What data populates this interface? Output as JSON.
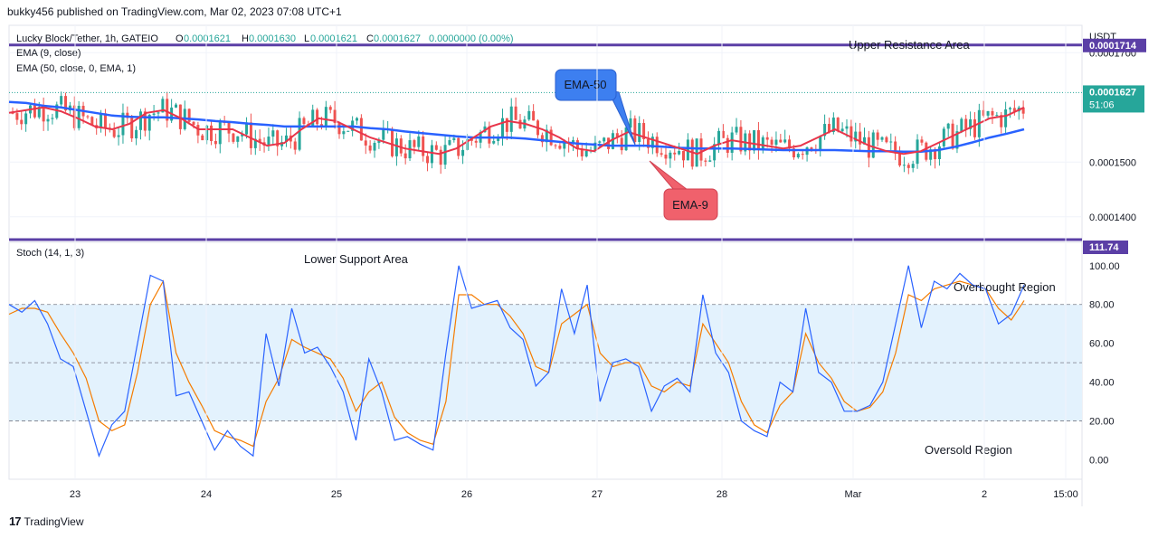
{
  "publisher_line": "bukky456 published on TradingView.com, Mar 02, 2023 07:08 UTC+1",
  "footer": {
    "logo_glyph": "17",
    "brand": "TradingView"
  },
  "price_pane": {
    "symbol_line": "Lucky Block/Tether, 1h, GATEIO",
    "ohlc": {
      "o_label": "O",
      "o": "0.0001621",
      "h_label": "H",
      "h": "0.0001630",
      "l_label": "L",
      "l": "0.0001621",
      "c_label": "C",
      "c": "0.0001627",
      "change": "0.0000000 (0.00%)"
    },
    "ema9_legend": "EMA (9, close)",
    "ema50_legend": "EMA (50, close, 0, EMA, 1)",
    "currency": "USDT",
    "resistance_label": "0.0001714",
    "last_price_label": "0.0001627",
    "countdown": "51:06",
    "ticks": [
      "0.0001700",
      "0.0001500",
      "0.0001400"
    ],
    "callouts": {
      "ema50": "EMA-50",
      "ema9": "EMA-9",
      "upper_resistance": "Upper Resistance Area"
    }
  },
  "stoch_pane": {
    "legend": "Stoch (14, 1, 3)",
    "level_label": "111.74",
    "ticks": [
      "100.00",
      "80.00",
      "60.00",
      "40.00",
      "20.00",
      "0.00"
    ],
    "callouts": {
      "lower_support": "Lower Support Area",
      "overbought": "Overbought Region",
      "oversold": "Oversold Region"
    }
  },
  "x_axis": {
    "labels": [
      "23",
      "24",
      "25",
      "26",
      "27",
      "28",
      "Mar",
      "2",
      "15:00"
    ]
  },
  "colors": {
    "up": "#26a69a",
    "down": "#ef5350",
    "ema9": "#e8354a",
    "ema50": "#2962ff",
    "purple": "#5b3fa6",
    "stoch_k": "#2962ff",
    "stoch_d": "#f57c00",
    "band": "#e3f2fd"
  },
  "chart_data": [
    {
      "type": "candlestick",
      "title": "Lucky Block/Tether, 1h, GATEIO",
      "ylabel": "USDT",
      "ylim": [
        0.000136,
        0.000175
      ],
      "x_labels": [
        "23",
        "24",
        "25",
        "26",
        "27",
        "28",
        "Mar",
        "2",
        "15:00"
      ],
      "horizontal_levels": [
        0.0001714
      ],
      "series": [
        {
          "name": "EMA (9, close)",
          "values": [
            0.000159,
            0.0001595,
            0.00016,
            0.0001593,
            0.000158,
            0.0001565,
            0.000156,
            0.000157,
            0.000159,
            0.0001595,
            0.000158,
            0.000156,
            0.000156,
            0.000156,
            0.0001545,
            0.000153,
            0.0001535,
            0.000156,
            0.000158,
            0.0001575,
            0.000156,
            0.0001545,
            0.0001535,
            0.0001525,
            0.000152,
            0.0001515,
            0.0001525,
            0.0001545,
            0.0001565,
            0.0001575,
            0.000157,
            0.000156,
            0.0001545,
            0.0001525,
            0.000152,
            0.000154,
            0.0001555,
            0.0001545,
            0.0001535,
            0.0001525,
            0.0001515,
            0.000153,
            0.000154,
            0.0001535,
            0.000153,
            0.0001525,
            0.000153,
            0.0001545,
            0.000156,
            0.0001545,
            0.000153,
            0.000152,
            0.0001515,
            0.000152,
            0.0001535,
            0.000155,
            0.0001565,
            0.000158,
            0.0001585,
            0.00016
          ]
        },
        {
          "name": "EMA (50, close, 0, EMA, 1)",
          "values": [
            0.000161,
            0.0001608,
            0.0001603,
            0.00016,
            0.0001595,
            0.000159,
            0.0001585,
            0.0001583,
            0.0001582,
            0.0001582,
            0.000158,
            0.0001578,
            0.0001575,
            0.0001573,
            0.000157,
            0.0001568,
            0.0001565,
            0.0001565,
            0.0001565,
            0.0001565,
            0.0001565,
            0.0001562,
            0.000156,
            0.0001556,
            0.0001553,
            0.000155,
            0.0001547,
            0.0001545,
            0.0001545,
            0.0001545,
            0.0001543,
            0.000154,
            0.0001537,
            0.0001534,
            0.0001532,
            0.000153,
            0.000153,
            0.000153,
            0.0001528,
            0.0001526,
            0.0001525,
            0.0001525,
            0.0001525,
            0.0001524,
            0.0001523,
            0.0001522,
            0.0001522,
            0.0001522,
            0.0001522,
            0.0001521,
            0.000152,
            0.000152,
            0.0001519,
            0.0001519,
            0.0001522,
            0.0001528,
            0.0001536,
            0.0001545,
            0.0001552,
            0.000156
          ]
        }
      ]
    },
    {
      "type": "line",
      "title": "Stoch (14, 1, 3)",
      "ylim": [
        -10,
        112
      ],
      "x_labels": [
        "23",
        "24",
        "25",
        "26",
        "27",
        "28",
        "Mar",
        "2",
        "15:00"
      ],
      "horizontal_levels": [
        20,
        50,
        80
      ],
      "series": [
        {
          "name": "%K",
          "values": [
            80,
            76,
            82,
            70,
            52,
            48,
            25,
            2,
            18,
            25,
            60,
            95,
            92,
            33,
            35,
            20,
            5,
            15,
            7,
            2,
            65,
            38,
            78,
            55,
            58,
            48,
            35,
            10,
            52,
            35,
            10,
            12,
            8,
            5,
            55,
            100,
            78,
            80,
            82,
            68,
            62,
            38,
            45,
            88,
            65,
            90,
            30,
            50,
            52,
            48,
            25,
            38,
            42,
            35,
            85,
            55,
            45,
            20,
            15,
            12,
            40,
            35,
            78,
            45,
            40,
            25,
            25,
            28,
            40,
            70,
            100,
            68,
            92,
            88,
            96,
            90,
            88,
            70,
            75,
            90
          ]
        },
        {
          "name": "%D",
          "values": [
            75,
            78,
            78,
            76,
            65,
            55,
            42,
            20,
            15,
            18,
            45,
            80,
            92,
            55,
            40,
            28,
            15,
            12,
            10,
            7,
            30,
            42,
            62,
            58,
            55,
            52,
            42,
            25,
            35,
            40,
            22,
            14,
            10,
            8,
            30,
            85,
            85,
            80,
            80,
            74,
            65,
            48,
            45,
            70,
            75,
            80,
            55,
            48,
            50,
            50,
            38,
            35,
            40,
            38,
            70,
            60,
            50,
            30,
            18,
            14,
            28,
            35,
            65,
            50,
            42,
            30,
            25,
            27,
            35,
            55,
            85,
            82,
            88,
            90,
            92,
            90,
            88,
            78,
            72,
            82
          ]
        }
      ]
    }
  ]
}
